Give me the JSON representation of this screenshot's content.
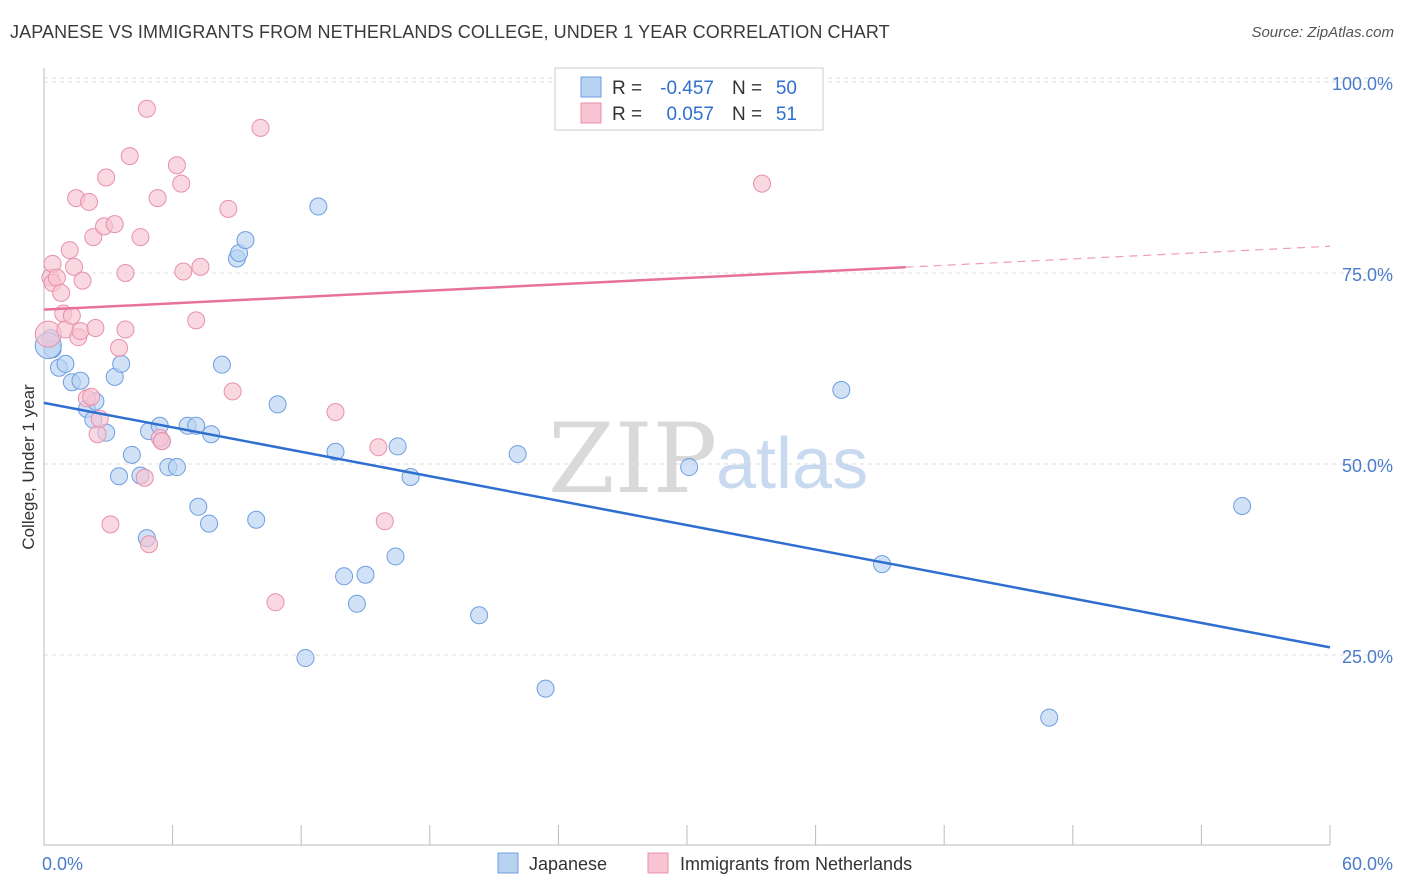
{
  "title": "JAPANESE VS IMMIGRANTS FROM NETHERLANDS COLLEGE, UNDER 1 YEAR CORRELATION CHART",
  "source": "Source: ZipAtlas.com",
  "watermark": {
    "zip": "ZIP",
    "atlas": "atlas"
  },
  "legend": {
    "r_label": "R =",
    "n_label": "N =",
    "rows": [
      {
        "r": "-0.457",
        "n": "50",
        "fill": "#b8d2f2",
        "stroke": "#6e9ee0"
      },
      {
        "r": "0.057",
        "n": "51",
        "fill": "#f8c3d2",
        "stroke": "#e890ab"
      }
    ]
  },
  "chart_data": {
    "type": "scatter",
    "title": "JAPANESE VS IMMIGRANTS FROM NETHERLANDS COLLEGE, UNDER 1 YEAR CORRELATION CHART",
    "xlabel": "",
    "ylabel": "College, Under 1 year",
    "xlim": [
      0,
      60
    ],
    "ylim": [
      0,
      105
    ],
    "x_tick_labels": [
      "0.0%",
      "60.0%"
    ],
    "y_ticks": [
      25,
      50,
      75,
      100
    ],
    "y_tick_labels": [
      "25.0%",
      "50.0%",
      "75.0%",
      "100.0%"
    ],
    "grid": true,
    "legend_position": "bottom-center",
    "series": [
      {
        "name": "Japanese",
        "color": "#6e9ee0",
        "fill": "#b8d2f2",
        "line_color": "#2f6fcf",
        "trend": {
          "x": [
            0,
            60
          ],
          "y": [
            58.0,
            26.0
          ],
          "dashed_from": null
        },
        "points": [
          [
            0.3,
            66.5
          ],
          [
            0.4,
            65.0
          ],
          [
            0.7,
            62.6
          ],
          [
            1.0,
            63.1
          ],
          [
            1.3,
            60.7
          ],
          [
            1.7,
            60.9
          ],
          [
            2.0,
            57.2
          ],
          [
            2.4,
            58.2
          ],
          [
            2.3,
            55.8
          ],
          [
            2.9,
            54.1
          ],
          [
            3.3,
            61.4
          ],
          [
            3.6,
            63.1
          ],
          [
            3.5,
            48.4
          ],
          [
            4.1,
            51.2
          ],
          [
            4.5,
            48.5
          ],
          [
            4.9,
            54.3
          ],
          [
            4.8,
            40.3
          ],
          [
            5.4,
            55.0
          ],
          [
            5.5,
            53.0
          ],
          [
            5.8,
            49.6
          ],
          [
            6.2,
            49.6
          ],
          [
            6.7,
            55.0
          ],
          [
            7.1,
            55.0
          ],
          [
            7.2,
            44.4
          ],
          [
            7.7,
            42.2
          ],
          [
            7.8,
            53.9
          ],
          [
            8.3,
            63.0
          ],
          [
            9.0,
            76.9
          ],
          [
            9.1,
            77.6
          ],
          [
            9.4,
            79.3
          ],
          [
            9.9,
            42.7
          ],
          [
            10.9,
            57.8
          ],
          [
            12.2,
            24.6
          ],
          [
            12.8,
            83.7
          ],
          [
            13.6,
            51.6
          ],
          [
            14.0,
            35.3
          ],
          [
            14.6,
            31.7
          ],
          [
            15.0,
            35.5
          ],
          [
            16.4,
            37.9
          ],
          [
            16.5,
            52.3
          ],
          [
            17.1,
            48.3
          ],
          [
            20.3,
            30.2
          ],
          [
            22.1,
            51.3
          ],
          [
            23.4,
            20.6
          ],
          [
            30.1,
            49.6
          ],
          [
            37.2,
            59.7
          ],
          [
            39.1,
            36.9
          ],
          [
            46.9,
            16.8
          ],
          [
            55.9,
            44.5
          ],
          [
            0.2,
            65.5
          ]
        ]
      },
      {
        "name": "Immigrants from Netherlands",
        "color": "#e890ab",
        "fill": "#f8c3d2",
        "line_color": "#e8719a",
        "trend": {
          "x": [
            0,
            60
          ],
          "y": [
            70.2,
            78.5
          ],
          "dashed_from": 40.2
        },
        "points": [
          [
            0.2,
            67.0
          ],
          [
            0.3,
            74.4
          ],
          [
            0.4,
            73.7
          ],
          [
            0.4,
            76.2
          ],
          [
            0.6,
            74.4
          ],
          [
            0.8,
            72.4
          ],
          [
            0.9,
            69.7
          ],
          [
            1.0,
            67.6
          ],
          [
            1.2,
            78.0
          ],
          [
            1.3,
            69.4
          ],
          [
            1.4,
            75.8
          ],
          [
            1.5,
            84.8
          ],
          [
            1.6,
            66.6
          ],
          [
            1.7,
            67.4
          ],
          [
            1.8,
            74.0
          ],
          [
            2.0,
            58.6
          ],
          [
            2.1,
            84.3
          ],
          [
            2.3,
            79.7
          ],
          [
            2.4,
            67.8
          ],
          [
            2.5,
            53.9
          ],
          [
            2.6,
            55.9
          ],
          [
            2.8,
            81.1
          ],
          [
            2.9,
            87.5
          ],
          [
            3.1,
            42.1
          ],
          [
            3.3,
            81.4
          ],
          [
            3.5,
            65.2
          ],
          [
            3.8,
            67.6
          ],
          [
            3.8,
            75.0
          ],
          [
            4.0,
            90.3
          ],
          [
            4.5,
            79.7
          ],
          [
            4.7,
            48.2
          ],
          [
            4.8,
            96.5
          ],
          [
            4.9,
            39.5
          ],
          [
            5.3,
            84.8
          ],
          [
            5.4,
            53.4
          ],
          [
            5.5,
            53.0
          ],
          [
            6.2,
            89.1
          ],
          [
            6.4,
            86.7
          ],
          [
            6.5,
            75.2
          ],
          [
            7.1,
            68.8
          ],
          [
            7.3,
            75.8
          ],
          [
            8.6,
            83.4
          ],
          [
            8.8,
            59.5
          ],
          [
            10.1,
            94.0
          ],
          [
            10.8,
            31.9
          ],
          [
            13.6,
            56.8
          ],
          [
            15.6,
            52.2
          ],
          [
            15.9,
            42.5
          ],
          [
            24.3,
            98.0
          ],
          [
            33.5,
            86.7
          ],
          [
            2.2,
            58.8
          ]
        ]
      }
    ]
  },
  "bottom_legend": [
    "Japanese",
    "Immigrants from Netherlands"
  ]
}
